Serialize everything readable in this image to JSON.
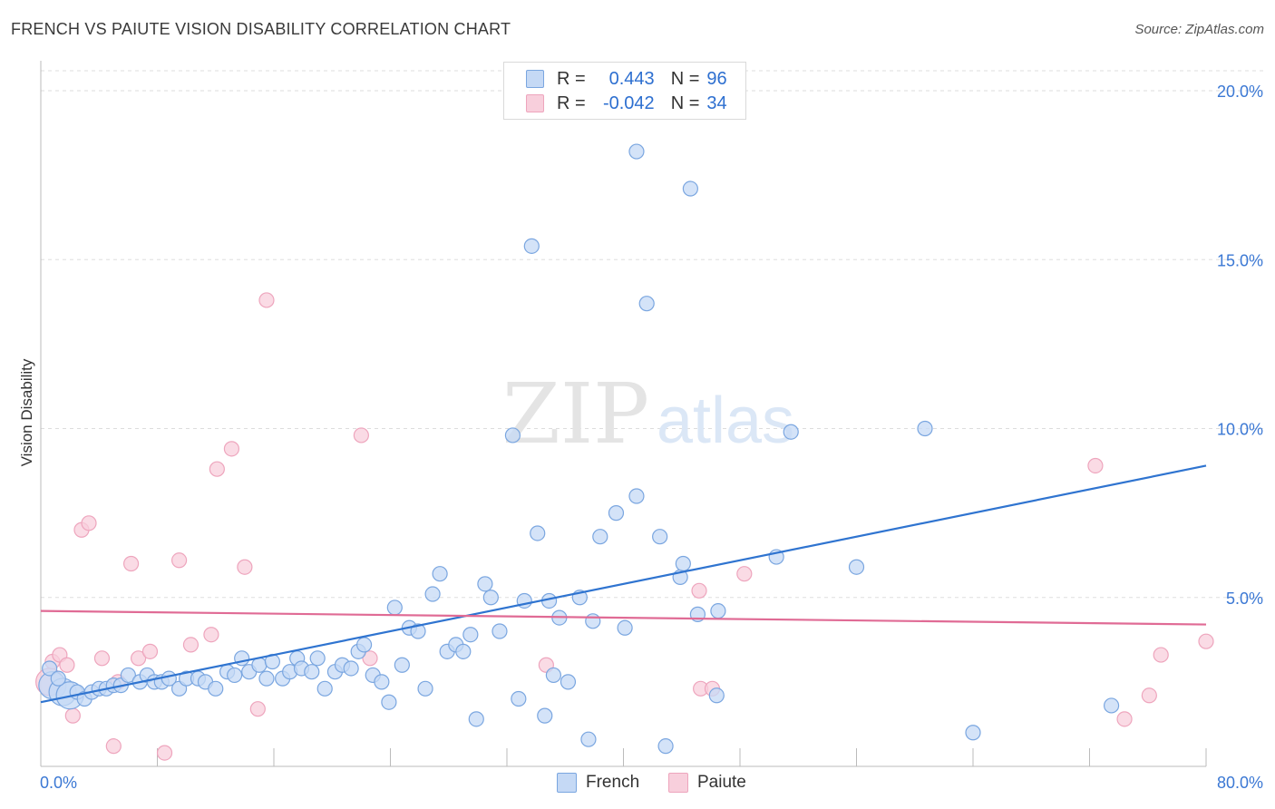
{
  "title": "FRENCH VS PAIUTE VISION DISABILITY CORRELATION CHART",
  "source": "Source: ZipAtlas.com",
  "watermark": {
    "zip": "ZIP",
    "atlas": "atlas"
  },
  "legend": {
    "rows": [
      {
        "r_label": "R =",
        "r_value": "0.443",
        "n_label": "N =",
        "n_value": "96"
      },
      {
        "r_label": "R =",
        "r_value": "-0.042",
        "n_label": "N =",
        "n_value": "34"
      }
    ]
  },
  "bottom_legend": {
    "french": "French",
    "paiute": "Paiute"
  },
  "colors": {
    "french_fill": "#c5d9f5",
    "french_stroke": "#7aa6e0",
    "french_line": "#2f74d0",
    "paiute_fill": "#f8cfdc",
    "paiute_stroke": "#eea5bd",
    "paiute_line": "#e06b95",
    "tick_text": "#3b78d4",
    "grid": "#dddddd"
  },
  "chart_data": {
    "type": "scatter",
    "title": "FRENCH VS PAIUTE VISION DISABILITY CORRELATION CHART",
    "xlabel": "",
    "ylabel": "Vision Disability",
    "xlim": [
      0,
      80
    ],
    "ylim": [
      0,
      20
    ],
    "x_tick_labels": [
      "0.0%",
      "80.0%"
    ],
    "y_ticks": [
      5,
      10,
      15,
      20
    ],
    "y_tick_labels": [
      "5.0%",
      "10.0%",
      "15.0%",
      "20.0%"
    ],
    "grid": true,
    "legend_position": "top-center",
    "series": [
      {
        "name": "French",
        "r": 0.443,
        "n": 96,
        "trend": {
          "x": [
            0,
            80
          ],
          "y": [
            1.9,
            8.9
          ]
        },
        "points": [
          {
            "x": 0.8,
            "y": 2.4,
            "big": true
          },
          {
            "x": 1.5,
            "y": 2.2,
            "big": true
          },
          {
            "x": 2.0,
            "y": 2.1,
            "big": true
          },
          {
            "x": 0.6,
            "y": 2.9
          },
          {
            "x": 1.2,
            "y": 2.6
          },
          {
            "x": 2.5,
            "y": 2.2
          },
          {
            "x": 3.0,
            "y": 2.0
          },
          {
            "x": 3.5,
            "y": 2.2
          },
          {
            "x": 4.0,
            "y": 2.3
          },
          {
            "x": 4.5,
            "y": 2.3
          },
          {
            "x": 5.0,
            "y": 2.4
          },
          {
            "x": 5.5,
            "y": 2.4
          },
          {
            "x": 6.0,
            "y": 2.7
          },
          {
            "x": 6.8,
            "y": 2.5
          },
          {
            "x": 7.3,
            "y": 2.7
          },
          {
            "x": 7.8,
            "y": 2.5
          },
          {
            "x": 8.3,
            "y": 2.5
          },
          {
            "x": 8.8,
            "y": 2.6
          },
          {
            "x": 9.5,
            "y": 2.3
          },
          {
            "x": 10.0,
            "y": 2.6
          },
          {
            "x": 10.8,
            "y": 2.6
          },
          {
            "x": 11.3,
            "y": 2.5
          },
          {
            "x": 12.0,
            "y": 2.3
          },
          {
            "x": 12.8,
            "y": 2.8
          },
          {
            "x": 13.3,
            "y": 2.7
          },
          {
            "x": 13.8,
            "y": 3.2
          },
          {
            "x": 14.3,
            "y": 2.8
          },
          {
            "x": 15.0,
            "y": 3.0
          },
          {
            "x": 15.5,
            "y": 2.6
          },
          {
            "x": 15.9,
            "y": 3.1
          },
          {
            "x": 16.6,
            "y": 2.6
          },
          {
            "x": 17.1,
            "y": 2.8
          },
          {
            "x": 17.6,
            "y": 3.2
          },
          {
            "x": 17.9,
            "y": 2.9
          },
          {
            "x": 18.6,
            "y": 2.8
          },
          {
            "x": 19.0,
            "y": 3.2
          },
          {
            "x": 19.5,
            "y": 2.3
          },
          {
            "x": 20.2,
            "y": 2.8
          },
          {
            "x": 20.7,
            "y": 3.0
          },
          {
            "x": 21.3,
            "y": 2.9
          },
          {
            "x": 21.8,
            "y": 3.4
          },
          {
            "x": 22.2,
            "y": 3.6
          },
          {
            "x": 22.8,
            "y": 2.7
          },
          {
            "x": 23.4,
            "y": 2.5
          },
          {
            "x": 23.9,
            "y": 1.9
          },
          {
            "x": 24.3,
            "y": 4.7
          },
          {
            "x": 24.8,
            "y": 3.0
          },
          {
            "x": 25.3,
            "y": 4.1
          },
          {
            "x": 25.9,
            "y": 4.0
          },
          {
            "x": 26.4,
            "y": 2.3
          },
          {
            "x": 26.9,
            "y": 5.1
          },
          {
            "x": 27.4,
            "y": 5.7
          },
          {
            "x": 27.9,
            "y": 3.4
          },
          {
            "x": 28.5,
            "y": 3.6
          },
          {
            "x": 29.0,
            "y": 3.4
          },
          {
            "x": 29.5,
            "y": 3.9
          },
          {
            "x": 29.9,
            "y": 1.4
          },
          {
            "x": 30.5,
            "y": 5.4
          },
          {
            "x": 30.9,
            "y": 5.0
          },
          {
            "x": 31.5,
            "y": 4.0
          },
          {
            "x": 32.4,
            "y": 9.8
          },
          {
            "x": 32.8,
            "y": 2.0
          },
          {
            "x": 33.2,
            "y": 4.9
          },
          {
            "x": 33.7,
            "y": 15.4
          },
          {
            "x": 34.1,
            "y": 6.9
          },
          {
            "x": 34.6,
            "y": 1.5
          },
          {
            "x": 34.9,
            "y": 4.9
          },
          {
            "x": 35.2,
            "y": 2.7
          },
          {
            "x": 35.6,
            "y": 4.4
          },
          {
            "x": 36.2,
            "y": 2.5
          },
          {
            "x": 37.0,
            "y": 5.0
          },
          {
            "x": 37.6,
            "y": 0.8
          },
          {
            "x": 37.9,
            "y": 4.3
          },
          {
            "x": 38.4,
            "y": 6.8
          },
          {
            "x": 39.5,
            "y": 7.5
          },
          {
            "x": 40.1,
            "y": 4.1
          },
          {
            "x": 40.9,
            "y": 8.0
          },
          {
            "x": 40.9,
            "y": 18.2
          },
          {
            "x": 41.6,
            "y": 13.7
          },
          {
            "x": 42.5,
            "y": 6.8
          },
          {
            "x": 42.9,
            "y": 0.6
          },
          {
            "x": 43.9,
            "y": 5.6
          },
          {
            "x": 44.1,
            "y": 6.0
          },
          {
            "x": 44.6,
            "y": 17.1
          },
          {
            "x": 45.1,
            "y": 4.5
          },
          {
            "x": 46.5,
            "y": 4.6
          },
          {
            "x": 46.4,
            "y": 2.1
          },
          {
            "x": 50.5,
            "y": 6.2
          },
          {
            "x": 51.5,
            "y": 9.9
          },
          {
            "x": 56.0,
            "y": 5.9
          },
          {
            "x": 60.7,
            "y": 10.0
          },
          {
            "x": 64.0,
            "y": 1.0
          },
          {
            "x": 73.5,
            "y": 1.8
          }
        ]
      },
      {
        "name": "Paiute",
        "r": -0.042,
        "n": 34,
        "trend": {
          "x": [
            0,
            80
          ],
          "y": [
            4.6,
            4.2
          ]
        },
        "points": [
          {
            "x": 0.6,
            "y": 2.5,
            "big": true
          },
          {
            "x": 0.8,
            "y": 3.1
          },
          {
            "x": 1.3,
            "y": 3.3
          },
          {
            "x": 1.8,
            "y": 3.0
          },
          {
            "x": 2.2,
            "y": 1.5
          },
          {
            "x": 2.8,
            "y": 7.0
          },
          {
            "x": 3.3,
            "y": 7.2
          },
          {
            "x": 4.2,
            "y": 3.2
          },
          {
            "x": 5.0,
            "y": 0.6
          },
          {
            "x": 5.3,
            "y": 2.5
          },
          {
            "x": 6.2,
            "y": 6.0
          },
          {
            "x": 6.7,
            "y": 3.2
          },
          {
            "x": 7.5,
            "y": 3.4
          },
          {
            "x": 8.5,
            "y": 0.4
          },
          {
            "x": 9.5,
            "y": 6.1
          },
          {
            "x": 10.3,
            "y": 3.6
          },
          {
            "x": 11.7,
            "y": 3.9
          },
          {
            "x": 12.1,
            "y": 8.8
          },
          {
            "x": 13.1,
            "y": 9.4
          },
          {
            "x": 14.0,
            "y": 5.9
          },
          {
            "x": 14.9,
            "y": 1.7
          },
          {
            "x": 15.5,
            "y": 13.8
          },
          {
            "x": 22.0,
            "y": 9.8
          },
          {
            "x": 22.6,
            "y": 3.2
          },
          {
            "x": 34.7,
            "y": 3.0
          },
          {
            "x": 45.2,
            "y": 5.2
          },
          {
            "x": 45.3,
            "y": 2.3
          },
          {
            "x": 46.1,
            "y": 2.3
          },
          {
            "x": 48.3,
            "y": 5.7
          },
          {
            "x": 72.4,
            "y": 8.9
          },
          {
            "x": 74.4,
            "y": 1.4
          },
          {
            "x": 76.1,
            "y": 2.1
          },
          {
            "x": 76.9,
            "y": 3.3
          },
          {
            "x": 80.0,
            "y": 3.7
          }
        ]
      }
    ]
  }
}
